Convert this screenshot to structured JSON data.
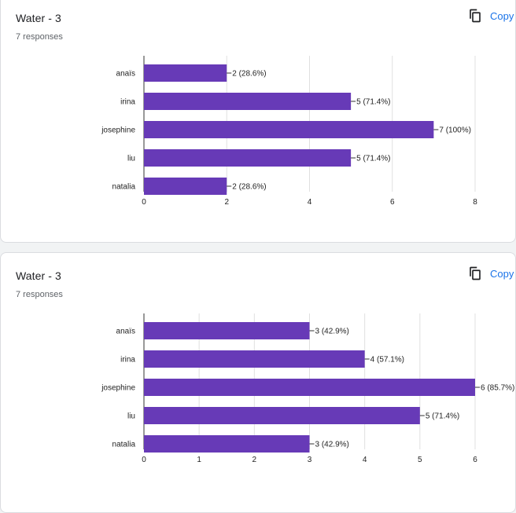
{
  "cards": [
    {
      "title": "Water - 3",
      "subtitle": "7 responses",
      "copy_label": "Copy"
    },
    {
      "title": "Water - 3",
      "subtitle": "7 responses",
      "copy_label": "Copy"
    }
  ],
  "colors": {
    "bar": "#673ab7",
    "grid": "#e0e0e0",
    "axis": "#333333",
    "text": "#222222",
    "link": "#1a73e8"
  },
  "chart_data": [
    {
      "type": "bar",
      "orientation": "horizontal",
      "categories": [
        "anaïs",
        "irina",
        "josephine",
        "liu",
        "natalia"
      ],
      "values": [
        2,
        5,
        7,
        5,
        2
      ],
      "data_labels": [
        "2 (28.6%)",
        "5 (71.4%)",
        "7 (100%)",
        "5 (71.4%)",
        "2 (28.6%)"
      ],
      "xlim": [
        0,
        8
      ],
      "xticks": [
        0,
        2,
        4,
        6,
        8
      ],
      "grid": true,
      "title": "",
      "xlabel": "",
      "ylabel": ""
    },
    {
      "type": "bar",
      "orientation": "horizontal",
      "categories": [
        "anaïs",
        "irina",
        "josephine",
        "liu",
        "natalia"
      ],
      "values": [
        3,
        4,
        6,
        5,
        3
      ],
      "data_labels": [
        "3 (42.9%)",
        "4 (57.1%)",
        "6 (85.7%)",
        "5 (71.4%)",
        "3 (42.9%)"
      ],
      "xlim": [
        0,
        6
      ],
      "xticks": [
        0,
        1,
        2,
        3,
        4,
        5,
        6
      ],
      "grid": true,
      "title": "",
      "xlabel": "",
      "ylabel": ""
    }
  ]
}
